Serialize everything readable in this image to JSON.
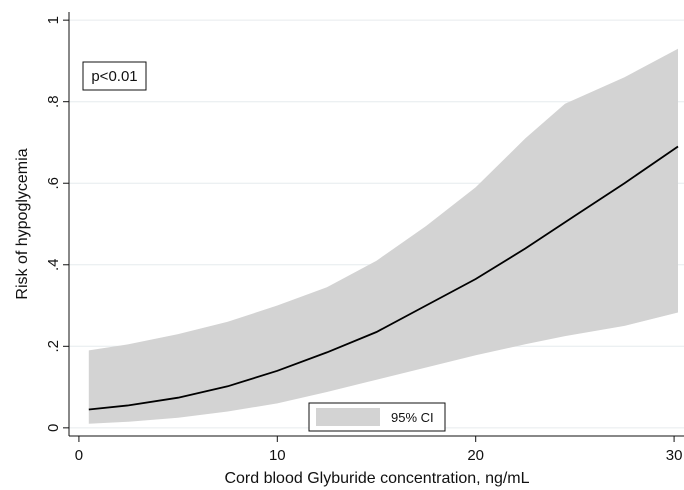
{
  "chart_data": {
    "type": "line",
    "title": "",
    "xlabel": "Cord blood Glyburide concentration, ng/mL",
    "ylabel": "Risk of hypoglycemia",
    "xlim": [
      -0.5,
      30.5
    ],
    "ylim": [
      -0.02,
      1.02
    ],
    "x_ticks": [
      0,
      10,
      20,
      30
    ],
    "x_tick_labels": [
      "0",
      "10",
      "20",
      "30"
    ],
    "y_ticks": [
      0,
      0.2,
      0.4,
      0.6,
      0.8,
      1
    ],
    "y_tick_labels": [
      "0",
      ".2",
      ".4",
      ".6",
      ".8",
      "1"
    ],
    "y_tick_orientation": "vertical",
    "grid": "horizontal",
    "annotation": "p<0.01",
    "annotation_position": "top-left",
    "legend": {
      "position": "bottom-center",
      "entries": [
        {
          "label": "95% CI",
          "style": "shaded-area"
        }
      ]
    },
    "colors": {
      "band": "#d3d3d3",
      "line": "#000000",
      "grid": "#e6ebee",
      "background": "#ffffff"
    },
    "series": [
      {
        "name": "",
        "style": "line",
        "x": [
          0.5,
          2.5,
          5,
          7.5,
          10,
          12.5,
          15,
          17.5,
          20,
          22.5,
          25,
          27.5,
          30.2
        ],
        "y": [
          0.045,
          0.055,
          0.074,
          0.102,
          0.14,
          0.185,
          0.235,
          0.3,
          0.365,
          0.44,
          0.52,
          0.6,
          0.69
        ]
      },
      {
        "name": "95% CI",
        "style": "band",
        "x": [
          0.5,
          2.5,
          5,
          7.5,
          10,
          12.5,
          15,
          17.5,
          20,
          22.5,
          24.5,
          27.5,
          30.2
        ],
        "lower": [
          0.01,
          0.015,
          0.025,
          0.04,
          0.06,
          0.088,
          0.118,
          0.148,
          0.178,
          0.205,
          0.225,
          0.25,
          0.283
        ],
        "upper": [
          0.19,
          0.205,
          0.23,
          0.26,
          0.3,
          0.345,
          0.41,
          0.495,
          0.59,
          0.71,
          0.795,
          0.86,
          0.93
        ]
      }
    ]
  }
}
